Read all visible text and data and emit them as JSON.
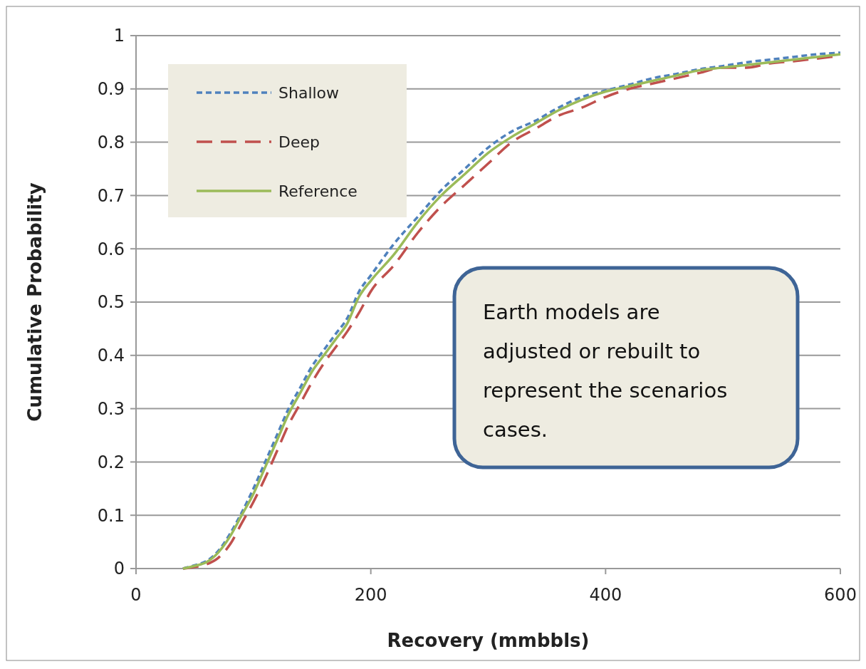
{
  "chart_data": {
    "type": "line",
    "xlabel": "Recovery (mmbbls)",
    "ylabel": "Cumulative Probability",
    "x": [
      40,
      50,
      60,
      70,
      80,
      90,
      100,
      110,
      120,
      130,
      140,
      150,
      160,
      170,
      180,
      190,
      200,
      220,
      240,
      260,
      280,
      300,
      320,
      340,
      360,
      380,
      400,
      420,
      440,
      460,
      480,
      500,
      520,
      540,
      560,
      580,
      600
    ],
    "series": [
      {
        "name": "Shallow",
        "color": "#4f81bd",
        "line_style": "dotted",
        "values": [
          0,
          0.006,
          0.014,
          0.033,
          0.065,
          0.105,
          0.15,
          0.2,
          0.25,
          0.3,
          0.34,
          0.38,
          0.41,
          0.44,
          0.47,
          0.52,
          0.55,
          0.61,
          0.66,
          0.71,
          0.75,
          0.79,
          0.82,
          0.84,
          0.865,
          0.885,
          0.897,
          0.908,
          0.92,
          0.928,
          0.937,
          0.943,
          0.95,
          0.955,
          0.96,
          0.965,
          0.968
        ]
      },
      {
        "name": "Deep",
        "color": "#c0504d",
        "line_style": "dashed",
        "values": [
          0,
          0.003,
          0.008,
          0.02,
          0.045,
          0.085,
          0.125,
          0.17,
          0.22,
          0.27,
          0.31,
          0.35,
          0.385,
          0.415,
          0.445,
          0.48,
          0.52,
          0.57,
          0.63,
          0.68,
          0.72,
          0.76,
          0.8,
          0.825,
          0.85,
          0.865,
          0.885,
          0.9,
          0.91,
          0.92,
          0.93,
          0.94,
          0.94,
          0.948,
          0.952,
          0.957,
          0.962
        ]
      },
      {
        "name": "Reference",
        "color": "#9bbb59",
        "line_style": "solid",
        "values": [
          0,
          0.005,
          0.012,
          0.03,
          0.06,
          0.1,
          0.14,
          0.19,
          0.24,
          0.29,
          0.33,
          0.37,
          0.4,
          0.43,
          0.46,
          0.51,
          0.54,
          0.59,
          0.65,
          0.7,
          0.74,
          0.78,
          0.81,
          0.835,
          0.86,
          0.88,
          0.895,
          0.905,
          0.915,
          0.925,
          0.935,
          0.94,
          0.945,
          0.95,
          0.955,
          0.96,
          0.965
        ]
      }
    ],
    "xlim": [
      0,
      600
    ],
    "xticks": [
      0,
      200,
      400,
      600
    ],
    "ylim": [
      0,
      1
    ],
    "yticks": [
      0,
      0.1,
      0.2,
      0.3,
      0.4,
      0.5,
      0.6,
      0.7,
      0.8,
      0.9,
      1
    ],
    "grid": "y",
    "legend": "top left",
    "marker": "none",
    "annotations": [
      {
        "text": "Earth models are adjusted or rebuilt to represent the scenarios cases."
      }
    ]
  }
}
